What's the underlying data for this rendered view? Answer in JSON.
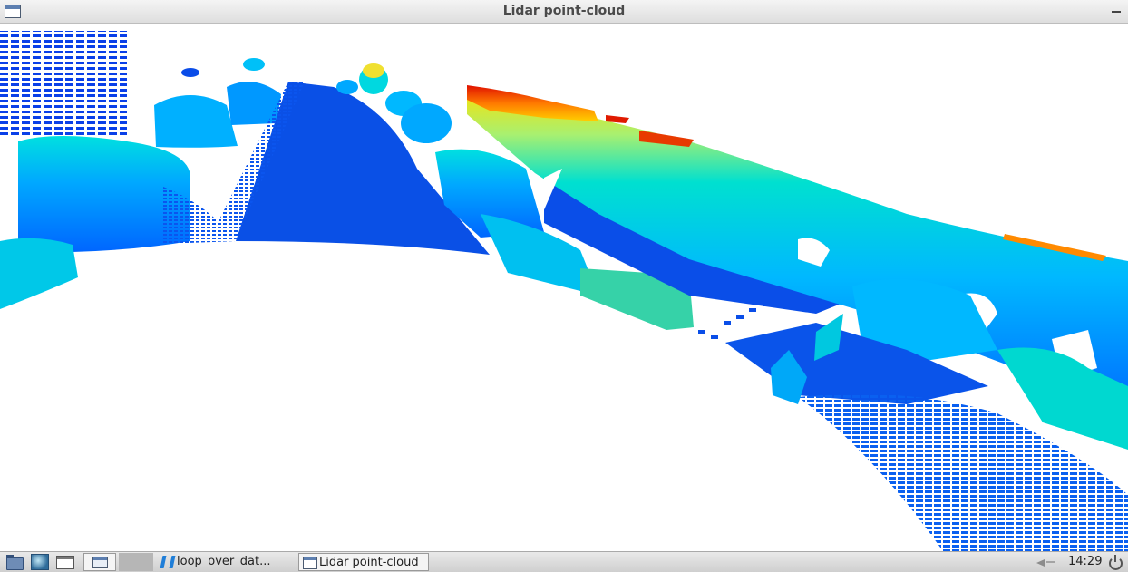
{
  "window": {
    "title": "Lidar point-cloud",
    "icon": "window-icon",
    "minimize_icon": "minimize-icon"
  },
  "viewport": {
    "background": "#ffffff",
    "colormap": [
      "#0000c8",
      "#0050ff",
      "#00b0ff",
      "#00e0d0",
      "#7ae880",
      "#ffff00",
      "#ff8000",
      "#e00000"
    ],
    "content": "lidar point cloud rendered with jet colormap by height"
  },
  "taskbar": {
    "launchers": [
      "file-manager-icon",
      "network-icon",
      "window-icon",
      "show-desktop-icon"
    ],
    "tasks": [
      {
        "label": "loop_over_dat...",
        "icon": "vscode-icon"
      },
      {
        "label": "Lidar point-cloud",
        "icon": "window-icon"
      }
    ],
    "tray": {
      "clock": "14:29",
      "volume_icon": "volume-icon",
      "power_icon": "power-icon"
    }
  }
}
